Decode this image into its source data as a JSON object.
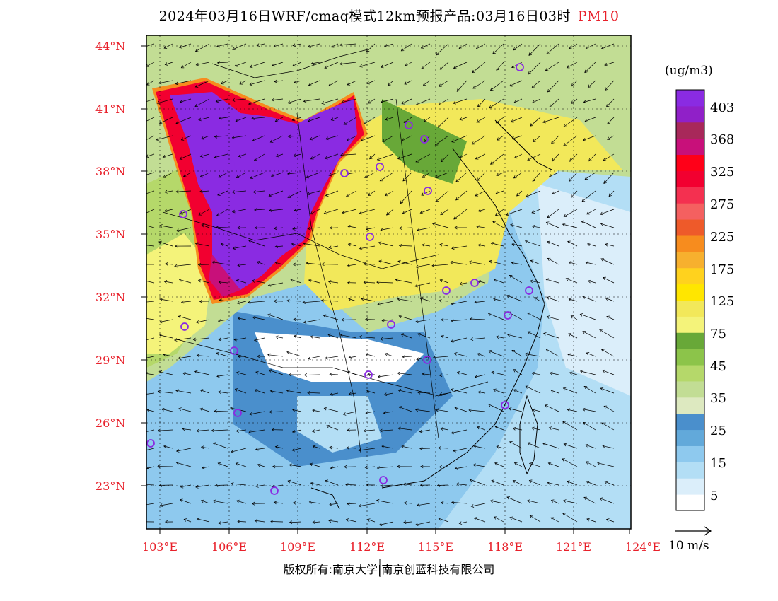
{
  "header": {
    "title": "2024年03月16日WRF/cmaq模式12km预报产品:03月16日03时",
    "pollutant": "PM10"
  },
  "axes": {
    "lat_labels": [
      "44°N",
      "41°N",
      "38°N",
      "35°N",
      "32°N",
      "29°N",
      "26°N",
      "23°N"
    ],
    "lon_labels": [
      "103°E",
      "106°E",
      "109°E",
      "112°E",
      "115°E",
      "118°E",
      "121°E",
      "124°E"
    ]
  },
  "colorbar": {
    "unit": "(ug/m3)",
    "colors": [
      "#ffffff",
      "#dbeefa",
      "#b3def5",
      "#8ec9ee",
      "#62a9da",
      "#4a8fcc",
      "#dde9c0",
      "#c2dd94",
      "#b5d86a",
      "#8cc44a",
      "#68a838",
      "#f4f37a",
      "#f2e85a",
      "#ffe600",
      "#ffd21e",
      "#f7b02e",
      "#f78c1e",
      "#ee5a2a",
      "#f46060",
      "#f43050",
      "#f20030",
      "#ff0018",
      "#c8107a",
      "#a8285a",
      "#9020c8",
      "#8a2be2"
    ],
    "labels": [
      "5",
      "15",
      "25",
      "35",
      "45",
      "75",
      "125",
      "175",
      "225",
      "275",
      "325",
      "368",
      "403"
    ]
  },
  "wind": {
    "reference_label": "10 m/s"
  },
  "footer": {
    "copyright": "版权所有:南京大学|南京创蓝科技有限公司"
  },
  "colors": {
    "high": "#8a2be2",
    "red": "#f20030",
    "yellow": "#f2e85a",
    "green": "#b5d86a",
    "blue": "#62a9da",
    "label_red": "#e8202a"
  }
}
